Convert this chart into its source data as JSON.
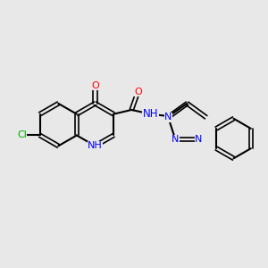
{
  "bg_color": "#e8e8e8",
  "bond_color": "#000000",
  "title": "",
  "figsize": [
    3.0,
    3.0
  ],
  "dpi": 100,
  "atom_colors": {
    "O": "#ff0000",
    "N": "#0000ff",
    "Cl": "#00aa00",
    "C": "#000000",
    "H": "#000000"
  }
}
